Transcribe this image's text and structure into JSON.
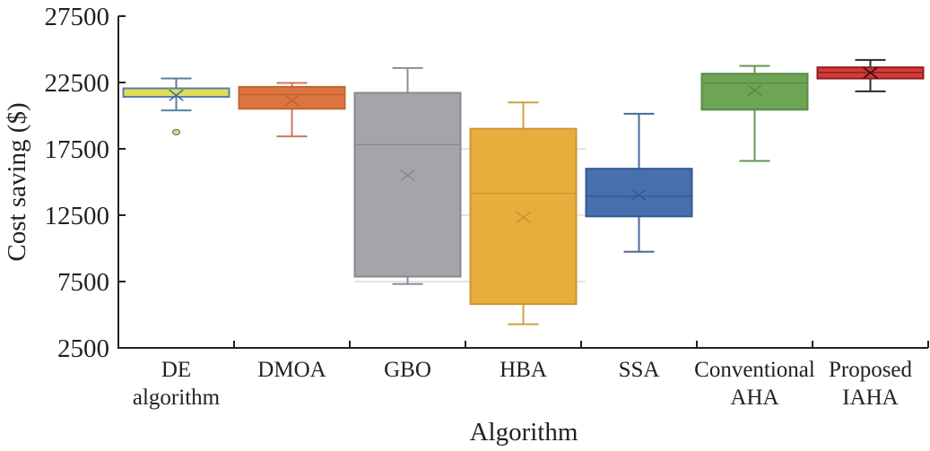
{
  "chart_data": {
    "type": "box",
    "title": "",
    "xlabel": "Algorithm",
    "ylabel": "Cost saving ($)",
    "ylim": [
      2500,
      27500
    ],
    "yticks": [
      2500,
      7500,
      12500,
      17500,
      22500,
      27500
    ],
    "ytick_labels": [
      "2500",
      "7500",
      "12500",
      "17500",
      "22500",
      "27500"
    ],
    "grid": "partial-horizontal-faint",
    "legend": "none",
    "categories": [
      [
        "DE",
        "algorithm"
      ],
      [
        "DMOA"
      ],
      [
        "GBO"
      ],
      [
        "HBA"
      ],
      [
        "SSA"
      ],
      [
        "Conventional",
        "AHA"
      ],
      [
        "Proposed",
        "IAHA"
      ]
    ],
    "series": [
      {
        "name": "DE algorithm",
        "whisker_low": 20400,
        "q1": 21420,
        "median": 21420,
        "q3": 22060,
        "whisker_high": 22800,
        "mean": 21540,
        "outliers": [
          18760
        ],
        "fill": "#e2dc5a",
        "stroke": "#5b7fa6",
        "whisker": "#5b7fa6",
        "mean_color": "#3f6fa8"
      },
      {
        "name": "DMOA",
        "whisker_low": 18440,
        "q1": 20520,
        "median": 21600,
        "q3": 22170,
        "whisker_high": 22470,
        "mean": 21150,
        "outliers": [],
        "fill": "#dd7541",
        "stroke": "#c46430",
        "whisker": "#c87a58",
        "mean_color": "#c2632f"
      },
      {
        "name": "GBO",
        "whisker_low": 7310,
        "q1": 7870,
        "median": 17810,
        "q3": 21720,
        "whisker_high": 23590,
        "mean": 15510,
        "outliers": [],
        "fill": "#a4a5aa",
        "stroke": "#88898e",
        "whisker": "#8c8d92",
        "mean_color": "#8a8b90"
      },
      {
        "name": "HBA",
        "whisker_low": 4280,
        "q1": 5800,
        "median": 14150,
        "q3": 19010,
        "whisker_high": 21000,
        "mean": 12340,
        "outliers": [],
        "fill": "#e7ae3c",
        "stroke": "#cc9634",
        "whisker": "#cfa04a",
        "mean_color": "#c79532"
      },
      {
        "name": "SSA",
        "whisker_low": 9750,
        "q1": 12410,
        "median": 13930,
        "q3": 16000,
        "whisker_high": 20140,
        "mean": 14040,
        "outliers": [],
        "fill": "#4670ae",
        "stroke": "#34588f",
        "whisker": "#4a6a9c",
        "mean_color": "#35598f"
      },
      {
        "name": "Conventional AHA",
        "whisker_low": 16590,
        "q1": 20450,
        "median": 22470,
        "q3": 23160,
        "whisker_high": 23750,
        "mean": 21900,
        "outliers": [],
        "fill": "#6ea555",
        "stroke": "#5a8c44",
        "whisker": "#6a9452",
        "mean_color": "#5b8c45"
      },
      {
        "name": "Proposed IAHA",
        "whisker_low": 21830,
        "q1": 22800,
        "median": 23250,
        "q3": 23640,
        "whisker_high": 24200,
        "mean": 23230,
        "outliers": [],
        "fill": "#d63a3a",
        "stroke": "#8c1f1f",
        "whisker": "#2a2a2a",
        "mean_color": "#3a1010"
      }
    ]
  }
}
